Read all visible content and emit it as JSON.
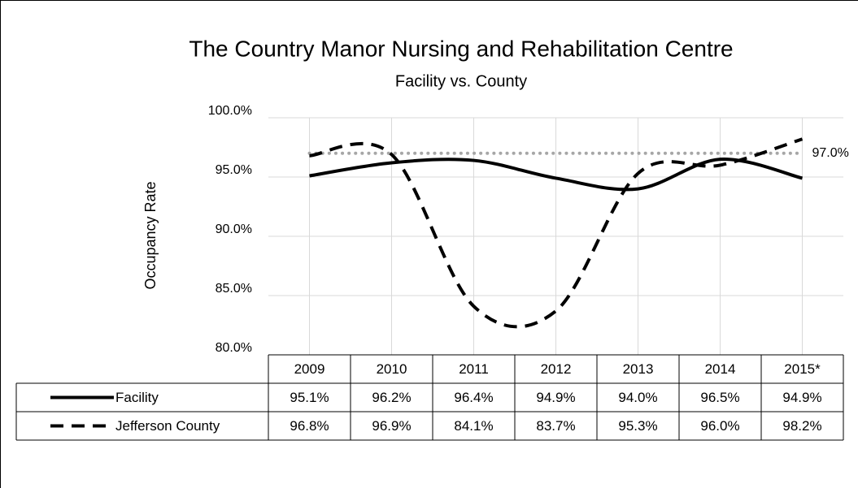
{
  "chart_data": {
    "type": "line",
    "title": "The Country Manor Nursing and Rehabilitation Centre",
    "subtitle": "Facility vs. County",
    "y_label": "Occupancy Rate",
    "categories": [
      "2009",
      "2010",
      "2011",
      "2012",
      "2013",
      "2014",
      "2015*"
    ],
    "series": [
      {
        "name": "Facility",
        "color": "#000000",
        "dash": "solid",
        "values": [
          95.1,
          96.2,
          96.4,
          94.9,
          94.0,
          96.5,
          94.9
        ],
        "value_labels": [
          "95.1%",
          "96.2%",
          "96.4%",
          "94.9%",
          "94.0%",
          "96.5%",
          "94.9%"
        ]
      },
      {
        "name": "Jefferson County",
        "color": "#000000",
        "dash": "dashed",
        "values": [
          96.8,
          96.9,
          84.1,
          83.7,
          95.3,
          96.0,
          98.2
        ],
        "value_labels": [
          "96.8%",
          "96.9%",
          "84.1%",
          "83.7%",
          "95.3%",
          "96.0%",
          "98.2%"
        ]
      }
    ],
    "reference_line": {
      "value": 97,
      "label": "97.0%",
      "color": "#a6a6a6"
    },
    "ylim": [
      80,
      100
    ],
    "yticks": [
      {
        "value": 80,
        "label": "80.0%"
      },
      {
        "value": 85,
        "label": "85.0%"
      },
      {
        "value": 90,
        "label": "90.0%"
      },
      {
        "value": 95,
        "label": "95.0%"
      },
      {
        "value": 100,
        "label": "100.0%"
      }
    ],
    "grid": true,
    "smooth": true
  }
}
